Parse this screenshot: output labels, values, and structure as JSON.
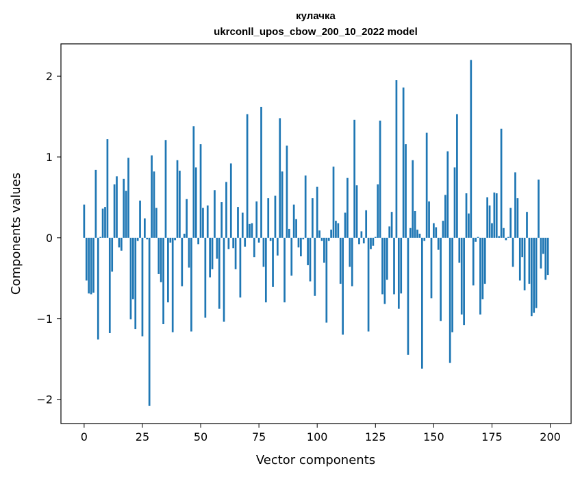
{
  "chart_data": {
    "type": "bar",
    "title_line1": "кулачка",
    "title_line2": "ukrconll_upos_cbow_200_10_2022 model",
    "xlabel": "Vector components",
    "ylabel": "Components values",
    "xlim": [
      -9.95,
      208.95
    ],
    "ylim": [
      -2.3,
      2.4
    ],
    "xticks": [
      0,
      25,
      50,
      75,
      100,
      125,
      150,
      175,
      200
    ],
    "xtick_labels": [
      "0",
      "25",
      "50",
      "75",
      "100",
      "125",
      "150",
      "175",
      "200"
    ],
    "yticks": [
      -2,
      -1,
      0,
      1,
      2
    ],
    "ytick_labels": [
      "−2",
      "−1",
      "0",
      "1",
      "2"
    ],
    "bar_color": "#1f77b4",
    "grid": false,
    "values": [
      0.41,
      -0.53,
      -0.69,
      -0.7,
      -0.68,
      0.84,
      -1.26,
      0.01,
      0.36,
      0.38,
      1.22,
      -1.18,
      -0.42,
      0.66,
      0.76,
      -0.12,
      -0.16,
      0.73,
      0.58,
      0.99,
      -1.01,
      -0.76,
      -1.13,
      -0.04,
      0.46,
      -1.22,
      0.24,
      -0.02,
      -2.08,
      1.02,
      0.82,
      0.37,
      -0.45,
      -0.55,
      -1.07,
      1.21,
      -0.8,
      -0.06,
      -1.17,
      -0.03,
      0.96,
      0.83,
      -0.6,
      0.05,
      0.48,
      -0.37,
      -1.16,
      1.38,
      0.87,
      -0.08,
      1.16,
      0.37,
      -0.99,
      0.4,
      -0.49,
      -0.39,
      0.59,
      -0.26,
      -0.88,
      0.44,
      -1.04,
      0.69,
      -0.14,
      0.92,
      -0.13,
      -0.39,
      0.38,
      -0.74,
      0.31,
      -0.11,
      1.53,
      0.17,
      0.18,
      -0.24,
      0.45,
      -0.06,
      1.62,
      -0.36,
      -0.8,
      0.49,
      -0.04,
      -0.61,
      0.52,
      -0.22,
      1.48,
      0.82,
      -0.8,
      1.14,
      0.11,
      -0.47,
      0.41,
      0.23,
      -0.12,
      -0.23,
      -0.02,
      0.77,
      -0.34,
      -0.54,
      0.49,
      -0.72,
      0.63,
      0.09,
      -0.04,
      -0.31,
      -1.05,
      -0.04,
      0.1,
      0.88,
      0.21,
      0.18,
      -0.57,
      -1.2,
      0.31,
      0.74,
      -0.36,
      -0.6,
      1.46,
      0.65,
      -0.08,
      0.08,
      -0.07,
      0.34,
      -1.16,
      -0.14,
      -0.1,
      0.01,
      0.66,
      1.45,
      -0.7,
      -0.82,
      -0.52,
      0.14,
      0.32,
      -0.7,
      1.95,
      -0.88,
      -0.69,
      1.86,
      1.16,
      -1.45,
      0.12,
      0.96,
      0.33,
      0.1,
      0.05,
      -1.62,
      -0.04,
      1.3,
      0.45,
      -0.75,
      0.18,
      0.13,
      -0.15,
      -1.03,
      0.21,
      0.53,
      1.07,
      -1.55,
      -1.17,
      0.87,
      1.53,
      -0.31,
      -0.95,
      -1.08,
      0.55,
      0.3,
      2.2,
      -0.59,
      -0.05,
      0.01,
      -0.95,
      -0.76,
      -0.57,
      0.5,
      0.4,
      0.18,
      0.56,
      0.55,
      0.02,
      1.35,
      0.12,
      -0.03,
      0.01,
      0.37,
      -0.36,
      0.81,
      0.49,
      -0.53,
      -0.24,
      -0.65,
      0.32,
      -0.57,
      -0.97,
      -0.93,
      -0.87,
      0.72,
      -0.38,
      -0.2,
      -0.52,
      -0.46
    ]
  }
}
